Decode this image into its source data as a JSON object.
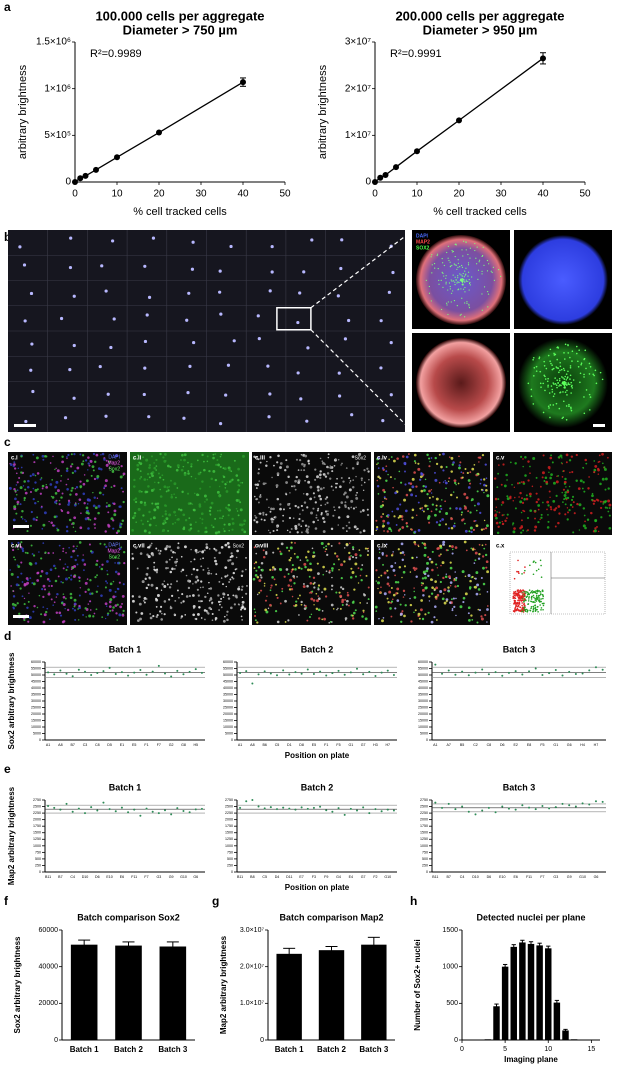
{
  "panel_labels": [
    "a",
    "b",
    "c",
    "d",
    "e",
    "f",
    "g",
    "h"
  ],
  "images": {
    "b": {
      "channels": [
        "DAPI",
        "MAP2",
        "SOX2"
      ]
    },
    "c": {
      "tiles": [
        "c.i",
        "c.ii",
        "c.iii",
        "c.iv",
        "c.v",
        "c.vi",
        "c.vii",
        "c.viii",
        "c.ix",
        "c.x"
      ],
      "channels": [
        "DAPI",
        "Map2",
        "Sox2"
      ],
      "sox2": "Sox2"
    }
  },
  "chart_data": [
    {
      "type": "line",
      "title": "100.000 cells per aggregate",
      "subtitle": "Diameter > 750 µm",
      "annotation": "R²=0.9989",
      "x_label": "% cell tracked cells",
      "y_label": "arbitrary brightness",
      "x": [
        0,
        1.25,
        2.5,
        5,
        10,
        20,
        40
      ],
      "values": [
        0,
        40000,
        65000,
        130000,
        265000,
        530000,
        1070000
      ],
      "errors": [
        null,
        null,
        null,
        null,
        null,
        null,
        45000
      ],
      "color": "#000000",
      "xlim": [
        0,
        50
      ],
      "xticks": [
        0,
        10,
        20,
        30,
        40,
        50
      ],
      "ylim": [
        0,
        1500000
      ],
      "yticks": [
        0,
        {
          "value": 500000,
          "label": "5×10⁵"
        },
        {
          "value": 1000000,
          "label": "1×10⁶"
        },
        {
          "value": 1500000,
          "label": "1.5×10⁶"
        }
      ]
    },
    {
      "type": "line",
      "title": "200.000 cells per aggregate",
      "subtitle": "Diameter > 950 µm",
      "annotation": "R²=0.9991",
      "x_label": "% cell tracked cells",
      "y_label": "arbitrary brightness",
      "x": [
        0,
        1.25,
        2.5,
        5,
        10,
        20,
        40
      ],
      "values": [
        0,
        900000,
        1500000,
        3200000,
        6600000,
        13200000,
        26500000
      ],
      "errors": [
        null,
        null,
        null,
        null,
        null,
        null,
        1200000
      ],
      "color": "#000000",
      "xlim": [
        0,
        50
      ],
      "xticks": [
        0,
        10,
        20,
        30,
        40,
        50
      ],
      "ylim": [
        0,
        30000000
      ],
      "yticks": [
        0,
        {
          "value": 10000000,
          "label": "1×10⁷"
        },
        {
          "value": 20000000,
          "label": "2×10⁷"
        },
        {
          "value": 30000000,
          "label": "3×10⁷"
        }
      ]
    },
    {
      "type": "strip",
      "title": "Batch 1",
      "y_label": "Sox2 arbitrary brightness",
      "color": "#2e8b57",
      "categories": [
        "A1",
        null,
        "A8",
        null,
        "B7",
        null,
        "C3",
        null,
        "C8",
        null,
        "D5",
        null,
        "E1",
        null,
        "E5",
        null,
        "F1",
        null,
        "F7",
        null,
        "G2",
        null,
        "G8",
        null,
        "H5",
        null
      ],
      "values": [
        52000,
        50500,
        53500,
        51000,
        49000,
        54000,
        52500,
        50000,
        51500,
        53000,
        55500,
        50800,
        52200,
        49500,
        51800,
        53800,
        50200,
        52600,
        57000,
        51200,
        48800,
        53200,
        50600,
        52400,
        54500,
        51600
      ],
      "ref_lines": [
        48000,
        52000,
        56000
      ],
      "ylim": [
        0,
        60000
      ],
      "yticks": [
        0,
        5000,
        10000,
        15000,
        20000,
        25000,
        30000,
        35000,
        40000,
        45000,
        50000,
        55000,
        60000
      ]
    },
    {
      "type": "strip",
      "title": "Batch 2",
      "x_label": "Position on plate",
      "color": "#2e8b57",
      "categories": [
        "A1",
        null,
        "A8",
        null,
        "B6",
        null,
        "C5",
        null,
        "D1",
        null,
        "D8",
        null,
        "E5",
        null,
        "F1",
        null,
        "F5",
        null,
        "G1",
        null,
        "G7",
        null,
        "H3",
        null,
        "H7",
        null
      ],
      "values": [
        51500,
        53000,
        43500,
        50500,
        52800,
        51200,
        49800,
        53600,
        50400,
        52200,
        51000,
        54200,
        50800,
        52600,
        49600,
        51400,
        53200,
        50200,
        52000,
        54800,
        50600,
        52400,
        49200,
        51800,
        53400,
        50000
      ],
      "ref_lines": [
        48000,
        52000,
        56000
      ],
      "ylim": [
        0,
        60000
      ],
      "yticks": [
        0,
        5000,
        10000,
        15000,
        20000,
        25000,
        30000,
        35000,
        40000,
        45000,
        50000,
        55000,
        60000
      ]
    },
    {
      "type": "strip",
      "title": "Batch 3",
      "color": "#2e8b57",
      "categories": [
        "A1",
        null,
        "A7",
        null,
        "B5",
        null,
        "C2",
        null,
        "C8",
        null,
        "D6",
        null,
        "E2",
        null,
        "E8",
        null,
        "F5",
        null,
        "G1",
        null,
        "G6",
        null,
        "H4",
        null,
        "H7",
        null
      ],
      "values": [
        58000,
        51000,
        53500,
        50200,
        52600,
        49800,
        51800,
        54200,
        50600,
        52200,
        49400,
        51600,
        53000,
        50400,
        52800,
        55000,
        50000,
        51400,
        53800,
        49600,
        52400,
        50800,
        51200,
        53600,
        56000,
        54000
      ],
      "ref_lines": [
        48000,
        52000,
        56000
      ],
      "ylim": [
        0,
        60000
      ],
      "yticks": [
        0,
        5000,
        10000,
        15000,
        20000,
        25000,
        30000,
        35000,
        40000,
        45000,
        50000,
        55000,
        60000
      ]
    },
    {
      "type": "strip",
      "title": "Batch 1",
      "y_label": "Map2 arbitrary brightness",
      "color": "#2e8b57",
      "categories": [
        "B11",
        null,
        "B7",
        null,
        "C4",
        null,
        "D10",
        null,
        "D6",
        null,
        "E10",
        null,
        "E6",
        null,
        "F11",
        null,
        "F7",
        null,
        "G3",
        null,
        "G9",
        null,
        "G10",
        null,
        "G6",
        null
      ],
      "values": [
        2520,
        2450,
        2380,
        2600,
        2300,
        2420,
        2250,
        2480,
        2350,
        2650,
        2400,
        2320,
        2460,
        2280,
        2380,
        2150,
        2420,
        2300,
        2250,
        2360,
        2200,
        2440,
        2330,
        2280,
        2390,
        2410
      ],
      "ref_lines": [
        2250,
        2400,
        2550
      ],
      "ylim": [
        0,
        2750
      ],
      "yticks": [
        0,
        250,
        500,
        750,
        1000,
        1250,
        1500,
        1750,
        2000,
        2250,
        2500,
        2750
      ]
    },
    {
      "type": "strip",
      "title": "Batch 2",
      "x_label": "Position on plate",
      "color": "#2e8b57",
      "categories": [
        "B11",
        null,
        "B8",
        null,
        "C5",
        null,
        "D4",
        null,
        "D11",
        null,
        "E7",
        null,
        "F3",
        null,
        "F9",
        null,
        "G4",
        null,
        "E4",
        null,
        "G7",
        null,
        "F2",
        null,
        "G10",
        null
      ],
      "values": [
        2450,
        2700,
        2750,
        2500,
        2430,
        2480,
        2400,
        2460,
        2420,
        2380,
        2470,
        2410,
        2450,
        2490,
        2360,
        2300,
        2440,
        2180,
        2410,
        2350,
        2470,
        2250,
        2400,
        2320,
        2380,
        2350
      ],
      "ref_lines": [
        2250,
        2400,
        2550
      ],
      "ylim": [
        0,
        2750
      ],
      "yticks": [
        0,
        250,
        500,
        750,
        1000,
        1250,
        1500,
        1750,
        2000,
        2250,
        2500,
        2750
      ]
    },
    {
      "type": "strip",
      "title": "Batch 3",
      "color": "#2e8b57",
      "categories": [
        "B11",
        null,
        "B7",
        null,
        "C4",
        null,
        "D10",
        null,
        "D6",
        null,
        "E10",
        null,
        "E6",
        null,
        "F11",
        null,
        "F7",
        null,
        "G3",
        null,
        "G9",
        null,
        "G10",
        null,
        "G6",
        null
      ],
      "values": [
        2650,
        2450,
        2600,
        2400,
        2500,
        2300,
        2200,
        2350,
        2450,
        2280,
        2500,
        2420,
        2380,
        2550,
        2460,
        2400,
        2520,
        2430,
        2480,
        2600,
        2550,
        2500,
        2620,
        2580,
        2700,
        2680
      ],
      "ref_lines": [
        2300,
        2450,
        2600
      ],
      "ylim": [
        0,
        2750
      ],
      "yticks": [
        0,
        250,
        500,
        750,
        1000,
        1250,
        1500,
        1750,
        2000,
        2250,
        2500,
        2750
      ]
    },
    {
      "type": "bar",
      "title": "Batch comparison Sox2",
      "y_label": "Sox2 arbitrary brightness",
      "color": "#000000",
      "categories": [
        "Batch 1",
        "Batch 2",
        "Batch 3"
      ],
      "values": [
        52000,
        51500,
        51000
      ],
      "errors": [
        2500,
        2000,
        2500
      ],
      "ylim": [
        0,
        60000
      ],
      "yticks": [
        0,
        20000,
        40000,
        60000
      ]
    },
    {
      "type": "bar",
      "title": "Batch comparison Map2",
      "y_label": "Map2 arbitrary brightness",
      "color": "#000000",
      "categories": [
        "Batch 1",
        "Batch 2",
        "Batch 3"
      ],
      "values": [
        23500000,
        24500000,
        26000000
      ],
      "errors": [
        1500000,
        1000000,
        2000000
      ],
      "ylim": [
        0,
        30000000
      ],
      "yticks": [
        0,
        {
          "value": 10000000,
          "label": "1.0×10⁷"
        },
        {
          "value": 20000000,
          "label": "2.0×10⁷"
        },
        {
          "value": 30000000,
          "label": "3.0×10⁷"
        }
      ]
    },
    {
      "type": "bar",
      "title": "Detected nuclei per plane",
      "y_label": "Number of Sox2+ nuclei",
      "x_label": "Imaging plane",
      "color": "#000000",
      "x": [
        1,
        2,
        3,
        4,
        5,
        6,
        7,
        8,
        9,
        10,
        11,
        12,
        13,
        14,
        15
      ],
      "values": [
        0,
        5,
        10,
        460,
        1000,
        1270,
        1330,
        1310,
        1290,
        1250,
        510,
        130,
        10,
        2,
        0
      ],
      "errors": [
        null,
        null,
        null,
        30,
        30,
        30,
        30,
        30,
        30,
        30,
        30,
        15,
        null,
        null,
        null
      ],
      "xlim": [
        0,
        16
      ],
      "xticks": [
        0,
        5,
        10,
        15
      ],
      "ylim": [
        0,
        1500
      ],
      "yticks": [
        0,
        500,
        1000,
        1500
      ]
    }
  ]
}
